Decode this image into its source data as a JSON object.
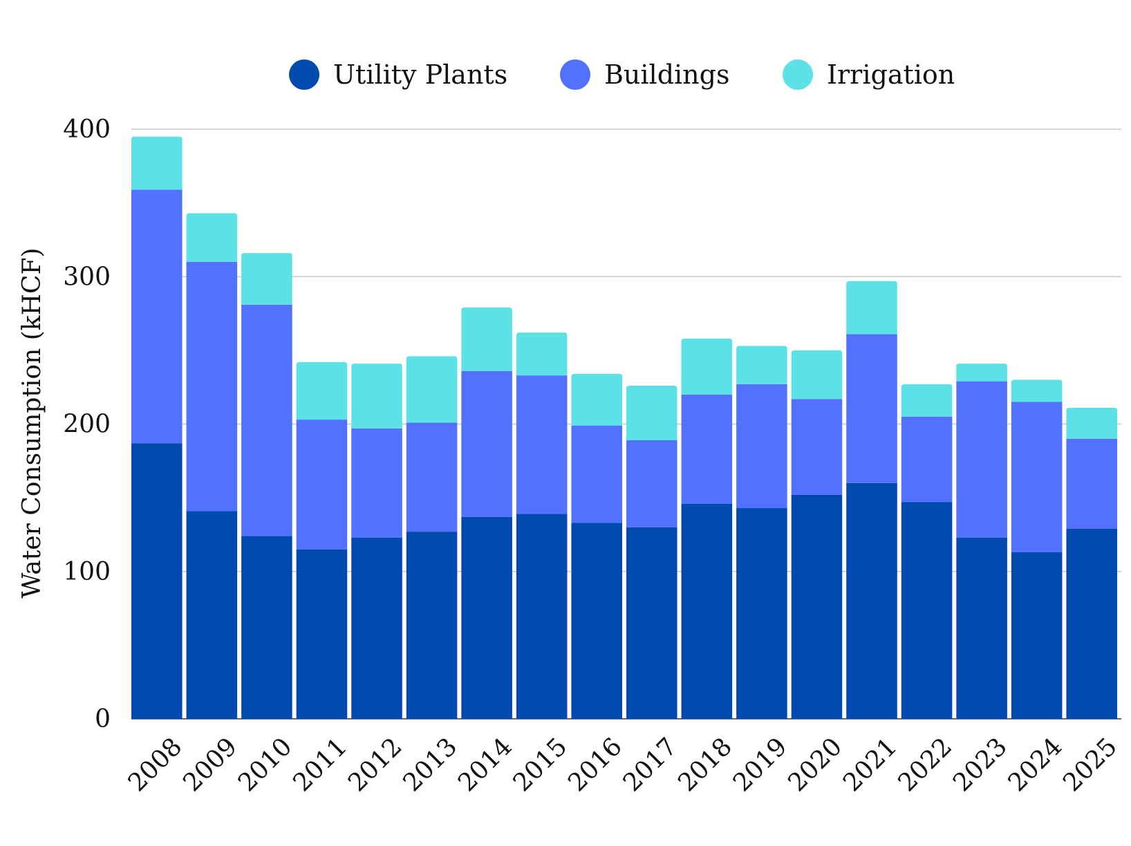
{
  "chart_data": {
    "type": "bar",
    "stacked": true,
    "categories": [
      "2008",
      "2009",
      "2010",
      "2011",
      "2012",
      "2013",
      "2014",
      "2015",
      "2016",
      "2017",
      "2018",
      "2019",
      "2020",
      "2021",
      "2022",
      "2023",
      "2024",
      "2025"
    ],
    "series": [
      {
        "name": "Utility Plants",
        "color": "#004AAD",
        "values": [
          187,
          141,
          124,
          115,
          123,
          127,
          137,
          139,
          133,
          130,
          146,
          143,
          152,
          160,
          147,
          123,
          113,
          129
        ]
      },
      {
        "name": "Buildings",
        "color": "#5271FF",
        "values": [
          172,
          169,
          157,
          88,
          74,
          74,
          99,
          94,
          66,
          59,
          74,
          84,
          65,
          101,
          58,
          106,
          102,
          61
        ]
      },
      {
        "name": "Irrigation",
        "color": "#5CE1E6",
        "values": [
          36,
          33,
          35,
          39,
          44,
          45,
          43,
          29,
          35,
          37,
          38,
          26,
          33,
          36,
          22,
          12,
          15,
          21
        ]
      }
    ],
    "ylabel": "Water Consumption (kHCF)",
    "xlabel": "",
    "ylim": [
      0,
      400
    ],
    "yticks": [
      0,
      100,
      200,
      300,
      400
    ],
    "grid": true,
    "legend_position": "top-center"
  }
}
